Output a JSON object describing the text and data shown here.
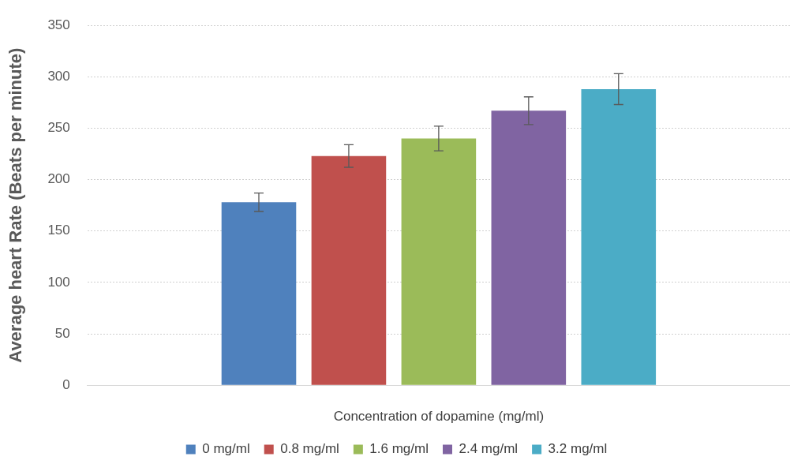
{
  "chart_data": {
    "type": "bar",
    "xlabel": "Concentration of dopamine (mg/ml)",
    "ylabel": "Average heart Rate (Beats per minute)",
    "categories": [
      null
    ],
    "series": [
      {
        "name": "0 mg/ml",
        "color": "#4f81bd",
        "values": [
          178
        ],
        "errors": [
          9
        ]
      },
      {
        "name": "0.8 mg/ml",
        "color": "#c0504d",
        "values": [
          223
        ],
        "errors": [
          11
        ]
      },
      {
        "name": "1.6 mg/ml",
        "color": "#9bbb59",
        "values": [
          240
        ],
        "errors": [
          12
        ]
      },
      {
        "name": "2.4 mg/ml",
        "color": "#8064a2",
        "values": [
          267
        ],
        "errors": [
          13.5
        ]
      },
      {
        "name": "3.2 mg/ml",
        "color": "#4bacc6",
        "values": [
          288
        ],
        "errors": [
          15
        ]
      }
    ],
    "ylim": [
      0,
      350
    ],
    "yticks": [
      0,
      50,
      100,
      150,
      200,
      250,
      300,
      350
    ],
    "grid": "y",
    "legend": "bottom"
  }
}
